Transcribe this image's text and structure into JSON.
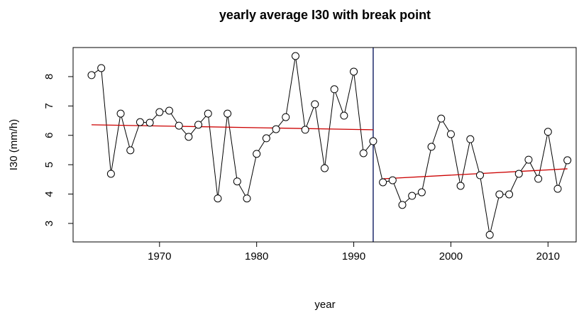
{
  "chart_data": {
    "type": "line",
    "title": "yearly average I30 with break point",
    "x_label": "year",
    "y_label": "I30 (mm/h)",
    "x": [
      1963,
      1964,
      1965,
      1966,
      1967,
      1968,
      1969,
      1970,
      1971,
      1972,
      1973,
      1974,
      1975,
      1976,
      1977,
      1978,
      1979,
      1980,
      1981,
      1982,
      1983,
      1984,
      1985,
      1986,
      1987,
      1988,
      1989,
      1990,
      1991,
      1992,
      1993,
      1994,
      1995,
      1996,
      1997,
      1998,
      1999,
      2000,
      2001,
      2002,
      2003,
      2004,
      2005,
      2006,
      2007,
      2008,
      2009,
      2010,
      2011,
      2012
    ],
    "series": [
      {
        "name": "I30",
        "color": "#000000",
        "values": [
          8.05,
          8.29,
          4.69,
          6.74,
          5.49,
          6.45,
          6.43,
          6.79,
          6.84,
          6.33,
          5.95,
          6.36,
          6.74,
          3.85,
          6.74,
          4.43,
          3.85,
          5.37,
          5.9,
          6.21,
          6.62,
          8.7,
          6.19,
          7.06,
          4.88,
          7.57,
          6.67,
          8.17,
          5.39,
          5.8,
          4.4,
          4.47,
          3.63,
          3.94,
          4.06,
          5.61,
          6.57,
          6.04,
          4.28,
          5.87,
          4.64,
          2.61,
          3.99,
          3.99,
          4.69,
          5.17,
          4.52,
          6.12,
          4.18,
          5.15
        ]
      }
    ],
    "trend_lines": [
      {
        "color": "#cc0000",
        "x": [
          1963,
          1992
        ],
        "y": [
          6.36,
          6.19
        ]
      },
      {
        "color": "#cc0000",
        "x": [
          1993,
          2012
        ],
        "y": [
          4.52,
          4.86
        ]
      }
    ],
    "break_point": {
      "x": 1992,
      "color": "#1f2a6b"
    },
    "xlim": [
      1961.1,
      2012.9
    ],
    "ylim": [
      2.37,
      8.99
    ],
    "xticks": [
      1970,
      1980,
      1990,
      2000,
      2010
    ],
    "yticks": [
      3,
      4,
      5,
      6,
      7,
      8
    ]
  }
}
